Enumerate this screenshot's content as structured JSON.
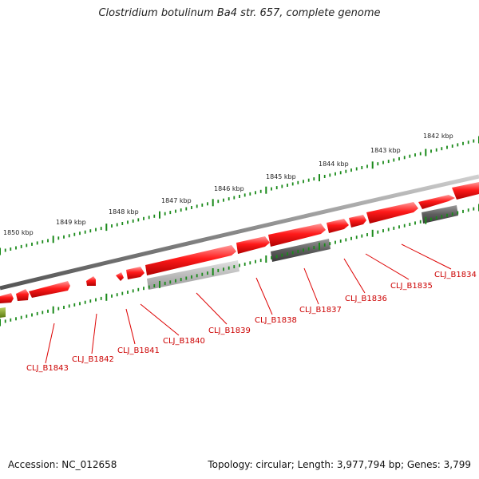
{
  "title": "Clostridium botulinum Ba4 str. 657, complete genome",
  "footer": {
    "accession": "Accession: NC_012658",
    "topology": "Topology: circular; Length: 3,977,794 bp; Genes: 3,799"
  },
  "colors": {
    "forward_gene": "#ff1010",
    "reverse_gene_dark": "#666666",
    "reverse_gene_light": "#bbbbbb",
    "other_feature": "#7a9a20",
    "tick_green": "#1a8a1a",
    "backbone": "#888888",
    "label_red": "#cc0000"
  },
  "kbp_scale": [
    "1842 kbp",
    "1843 kbp",
    "1844 kbp",
    "1845 kbp",
    "1846 kbp",
    "1847 kbp",
    "1848 kbp",
    "1849 kbp",
    "1850 kbp"
  ],
  "gene_labels": [
    "CLJ_B1834",
    "CLJ_B1835",
    "CLJ_B1836",
    "CLJ_B1837",
    "CLJ_B1838",
    "CLJ_B1839",
    "CLJ_B1840",
    "CLJ_B1841",
    "CLJ_B1842",
    "CLJ_B1843"
  ]
}
